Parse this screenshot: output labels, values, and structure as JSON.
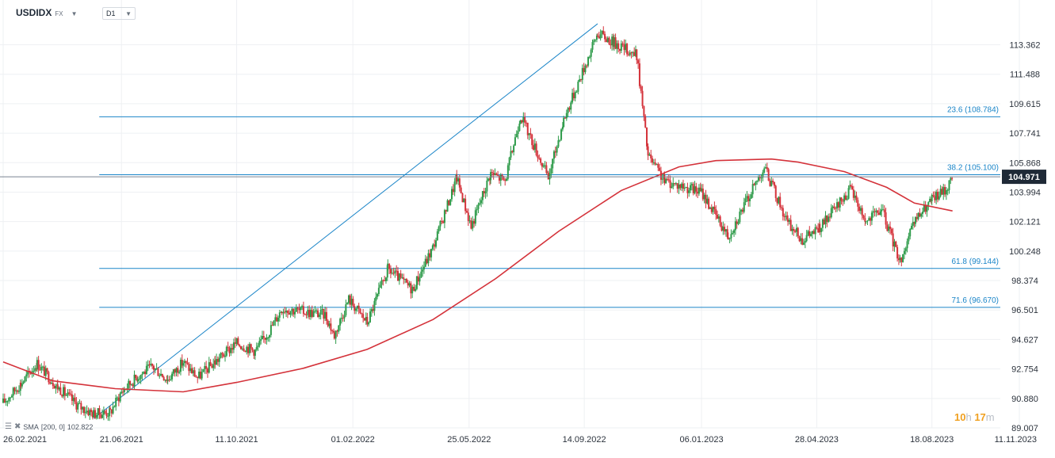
{
  "toolbar": {
    "symbol": "USDIDX",
    "symbol_type": "FX",
    "timeframe": "D1"
  },
  "indicator_legend": {
    "label": "SMA",
    "params": "[200, 0]",
    "value": "102.822"
  },
  "countdown": {
    "hours": "10",
    "hours_unit": "h",
    "minutes": "17",
    "minutes_unit": "m"
  },
  "colors": {
    "candle_up": "#2e9b4a",
    "candle_down": "#d4323a",
    "sma": "#d4323a",
    "fib_line": "#1a85c8",
    "fib_label": "#1a85c8",
    "price_tag_bg": "#1f2a37",
    "grid": "#eef0f3",
    "axis_text": "#2c333d"
  },
  "chart_data": {
    "type": "candlestick",
    "symbol": "USDIDX",
    "timeframe": "D1",
    "ylim": [
      89.007,
      115.0
    ],
    "xlim": [
      "2021-02-26",
      "2023-11-11"
    ],
    "y_ticks": [
      "113.362",
      "111.488",
      "109.615",
      "107.741",
      "105.868",
      "103.994",
      "102.121",
      "100.248",
      "98.374",
      "96.501",
      "94.627",
      "92.754",
      "90.880",
      "89.007"
    ],
    "x_ticks": [
      {
        "date": "2021-02-26",
        "label": "26.02.2021"
      },
      {
        "date": "2021-06-21",
        "label": "21.06.2021"
      },
      {
        "date": "2021-10-11",
        "label": "11.10.2021"
      },
      {
        "date": "2022-02-01",
        "label": "01.02.2022"
      },
      {
        "date": "2022-05-25",
        "label": "25.05.2022"
      },
      {
        "date": "2022-09-14",
        "label": "14.09.2022"
      },
      {
        "date": "2023-01-06",
        "label": "06.01.2023"
      },
      {
        "date": "2023-04-28",
        "label": "28.04.2023"
      },
      {
        "date": "2023-08-18",
        "label": "18.08.2023"
      },
      {
        "date": "2023-11-11",
        "label": "11.11.2023"
      }
    ],
    "last_price": "104.971",
    "grid": true,
    "price_path": [
      [
        "2021-02-26",
        90.6
      ],
      [
        "2021-03-15",
        91.8
      ],
      [
        "2021-03-31",
        93.1
      ],
      [
        "2021-04-20",
        91.6
      ],
      [
        "2021-05-10",
        90.4
      ],
      [
        "2021-05-25",
        89.9
      ],
      [
        "2021-06-10",
        90.0
      ],
      [
        "2021-06-21",
        91.3
      ],
      [
        "2021-07-07",
        92.3
      ],
      [
        "2021-07-21",
        92.9
      ],
      [
        "2021-08-05",
        92.1
      ],
      [
        "2021-08-20",
        93.2
      ],
      [
        "2021-09-03",
        92.2
      ],
      [
        "2021-09-20",
        93.2
      ],
      [
        "2021-10-11",
        94.4
      ],
      [
        "2021-10-29",
        93.9
      ],
      [
        "2021-11-12",
        95.2
      ],
      [
        "2021-11-24",
        96.6
      ],
      [
        "2021-12-15",
        96.4
      ],
      [
        "2022-01-05",
        96.2
      ],
      [
        "2022-01-14",
        94.9
      ],
      [
        "2022-01-28",
        97.2
      ],
      [
        "2022-02-15",
        95.7
      ],
      [
        "2022-03-07",
        99.1
      ],
      [
        "2022-03-31",
        97.8
      ],
      [
        "2022-04-20",
        100.5
      ],
      [
        "2022-05-13",
        104.9
      ],
      [
        "2022-05-27",
        101.8
      ],
      [
        "2022-06-15",
        105.2
      ],
      [
        "2022-06-29",
        104.7
      ],
      [
        "2022-07-14",
        108.9
      ],
      [
        "2022-08-10",
        104.9
      ],
      [
        "2022-08-25",
        108.6
      ],
      [
        "2022-09-27",
        114.1
      ],
      [
        "2022-10-13",
        113.5
      ],
      [
        "2022-11-04",
        112.7
      ],
      [
        "2022-11-15",
        106.3
      ],
      [
        "2022-12-01",
        104.7
      ],
      [
        "2023-01-06",
        104.0
      ],
      [
        "2023-02-01",
        101.2
      ],
      [
        "2023-03-08",
        105.6
      ],
      [
        "2023-03-31",
        102.0
      ],
      [
        "2023-04-14",
        101.0
      ],
      [
        "2023-05-01",
        101.7
      ],
      [
        "2023-05-31",
        104.2
      ],
      [
        "2023-06-15",
        102.1
      ],
      [
        "2023-06-30",
        102.9
      ],
      [
        "2023-07-18",
        99.6
      ],
      [
        "2023-08-02",
        102.2
      ],
      [
        "2023-08-18",
        103.5
      ],
      [
        "2023-09-01",
        104.2
      ],
      [
        "2023-09-07",
        104.97
      ]
    ],
    "sma_200": [
      [
        "2021-02-26",
        93.2
      ],
      [
        "2021-04-15",
        92.0
      ],
      [
        "2021-06-15",
        91.5
      ],
      [
        "2021-08-20",
        91.3
      ],
      [
        "2021-10-11",
        91.9
      ],
      [
        "2021-12-15",
        92.8
      ],
      [
        "2022-02-15",
        94.0
      ],
      [
        "2022-04-20",
        95.9
      ],
      [
        "2022-06-20",
        98.5
      ],
      [
        "2022-08-20",
        101.5
      ],
      [
        "2022-10-20",
        104.1
      ],
      [
        "2022-12-15",
        105.6
      ],
      [
        "2023-01-20",
        106.0
      ],
      [
        "2023-03-15",
        106.1
      ],
      [
        "2023-04-10",
        105.9
      ],
      [
        "2023-05-25",
        105.3
      ],
      [
        "2023-07-05",
        104.3
      ],
      [
        "2023-08-01",
        103.3
      ],
      [
        "2023-09-07",
        102.8
      ]
    ],
    "trendline": {
      "from": [
        "2021-05-25",
        89.6
      ],
      "to": [
        "2022-09-27",
        114.7
      ]
    },
    "fib_levels": [
      {
        "level": "23.6",
        "value": 108.784,
        "label": "23.6 (108.784)"
      },
      {
        "level": "38.2",
        "value": 105.1,
        "label": "38.2 (105.100)"
      },
      {
        "level": "61.8",
        "value": 99.144,
        "label": "61.8 (99.144)"
      },
      {
        "level": "71.6",
        "value": 96.67,
        "label": "71.6 (96.670)"
      }
    ],
    "fib_start_date": "2021-06-21",
    "fib_end_date": "2023-11-11",
    "current_price_line": 104.971
  }
}
